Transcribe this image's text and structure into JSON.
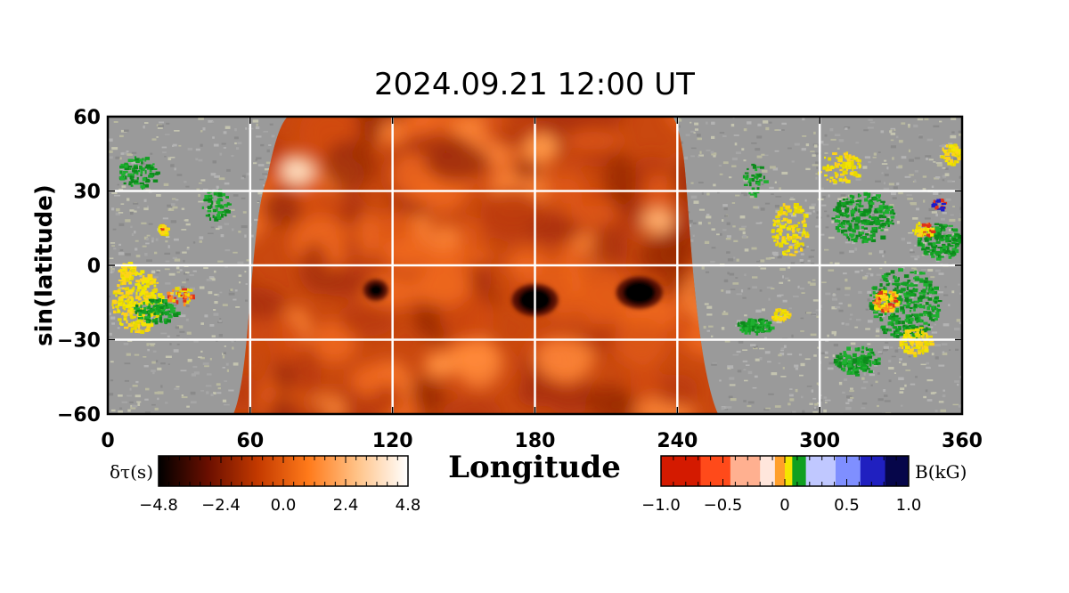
{
  "chart_data": {
    "type": "heatmap",
    "title": "2024.09.21  12:00 UT",
    "xlabel": "Longitude",
    "ylabel": "sin(latitude)",
    "xlim": [
      0,
      360
    ],
    "ylim": [
      -60,
      60
    ],
    "xticks": [
      "0",
      "60",
      "120",
      "180",
      "240",
      "300",
      "360"
    ],
    "yticks": [
      "60",
      "30",
      "0",
      "−30",
      "−60"
    ],
    "grid": true,
    "far_side_region": {
      "variable": "δτ(s)",
      "lon_range_equator": [
        62,
        246
      ],
      "dark_features": [
        {
          "lon": 113,
          "lat": -10
        },
        {
          "lon": 180,
          "lat": -14
        },
        {
          "lon": 224,
          "lat": -11
        }
      ]
    },
    "colorbars": [
      {
        "label": "δτ(s)",
        "range": [
          -4.8,
          4.8
        ],
        "ticks": [
          "−4.8",
          "−2.4",
          "0.0",
          "2.4",
          "4.8"
        ],
        "colors": [
          "#000000",
          "#6b0f00",
          "#c43a00",
          "#ff7a1a",
          "#ffc48a",
          "#ffffff"
        ]
      },
      {
        "label": "B(kG)",
        "range": [
          -1.0,
          1.0
        ],
        "ticks": [
          "−1.0",
          "−0.5",
          "0",
          "0.5",
          "1.0"
        ],
        "colors": [
          "#d41a00",
          "#ff4a1a",
          "#ffb090",
          "#ffe6dc",
          "#ff9f2a",
          "#f4e600",
          "#10a020",
          "#c0c8ff",
          "#7f8fff",
          "#2020c0",
          "#06064a"
        ]
      }
    ]
  }
}
